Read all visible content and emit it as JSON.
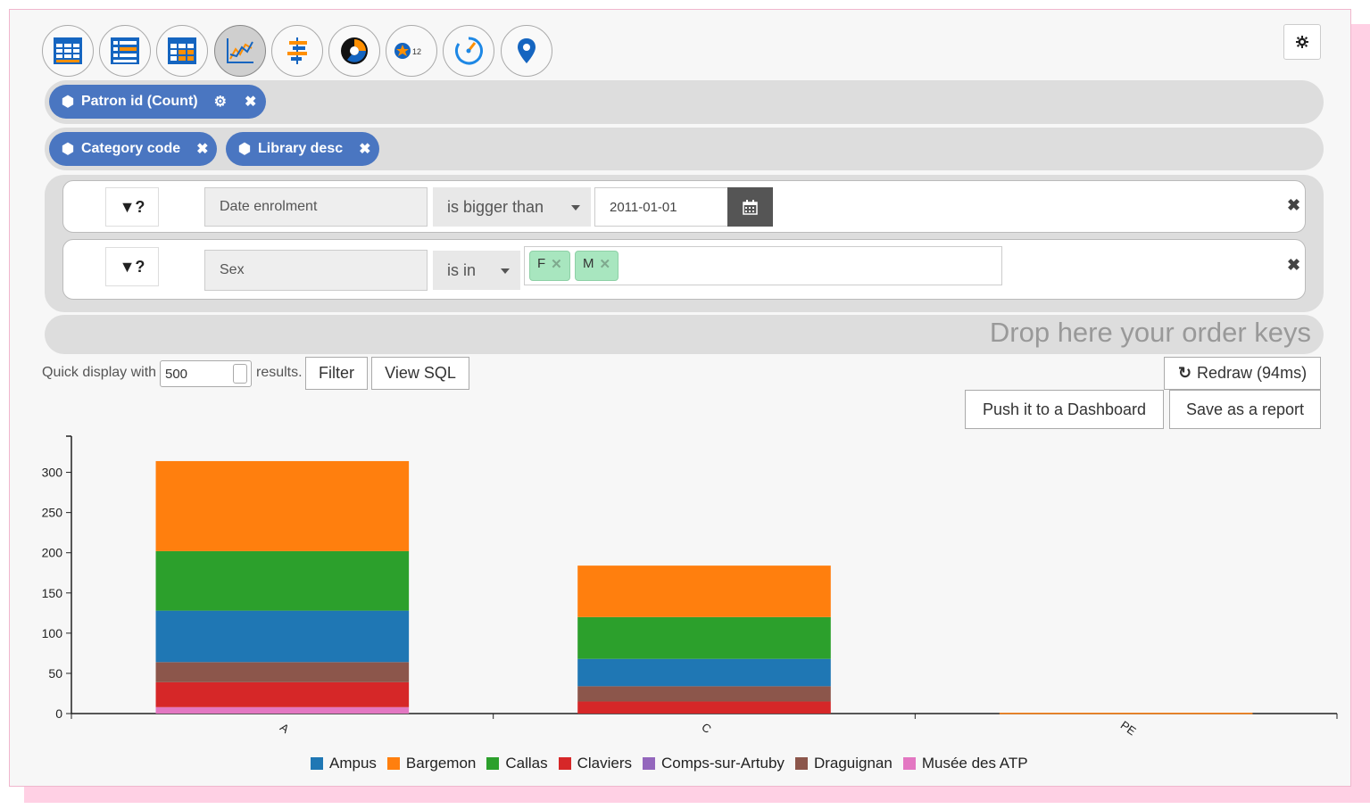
{
  "toolbar": {
    "viz_buttons": [
      {
        "name": "table-view-icon",
        "active": false
      },
      {
        "name": "list-view-icon",
        "active": false
      },
      {
        "name": "pivot-table-icon",
        "active": false
      },
      {
        "name": "line-chart-icon",
        "active": true
      },
      {
        "name": "bar-chart-icon",
        "active": false
      },
      {
        "name": "donut-chart-icon",
        "active": false
      },
      {
        "name": "metric-badge-icon",
        "active": false
      },
      {
        "name": "gauge-icon",
        "active": false
      },
      {
        "name": "map-marker-icon",
        "active": false
      }
    ],
    "badge_number": "12"
  },
  "measures": [
    {
      "label": "Patron id (Count)"
    }
  ],
  "dimensions": [
    {
      "label": "Category code"
    },
    {
      "label": "Library desc"
    }
  ],
  "filters": [
    {
      "funnel_label": "?",
      "field": "Date enrolment",
      "operator": "is bigger than",
      "value": "2011-01-01"
    },
    {
      "funnel_label": "?",
      "field": "Sex",
      "operator": "is in",
      "tags": [
        "F",
        "M"
      ]
    }
  ],
  "order_zone": {
    "placeholder": "Drop here your order keys"
  },
  "controls": {
    "quick_display_label": "Quick display with",
    "limit_value": "500",
    "results_label": "results.",
    "filter_button": "Filter",
    "view_sql_button": "View SQL",
    "redraw_button": "Redraw (94ms)",
    "push_dashboard_button": "Push it to a Dashboard",
    "save_report_button": "Save as a report"
  },
  "colors": {
    "pill": "#4a76c1",
    "tag": "#a8e6bf",
    "Ampus": "#1f77b4",
    "Bargemon": "#ff7f0e",
    "Callas": "#2ca02c",
    "Claviers": "#d62728",
    "Comps-sur-Artuby": "#9467bd",
    "Draguignan": "#8c564b",
    "Musée des ATP": "#e377c2"
  },
  "chart_data": {
    "type": "bar",
    "stacked": true,
    "categories": [
      "A",
      "C",
      "PE"
    ],
    "series": [
      {
        "name": "Musée des ATP",
        "values": [
          8,
          0,
          0
        ]
      },
      {
        "name": "Claviers",
        "values": [
          31,
          15,
          0
        ]
      },
      {
        "name": "Draguignan",
        "values": [
          25,
          19,
          0
        ]
      },
      {
        "name": "Ampus",
        "values": [
          64,
          34,
          0
        ]
      },
      {
        "name": "Callas",
        "values": [
          74,
          52,
          0
        ]
      },
      {
        "name": "Bargemon",
        "values": [
          112,
          64,
          1
        ]
      },
      {
        "name": "Comps-sur-Artuby",
        "values": [
          0,
          0,
          0
        ]
      }
    ],
    "legend_order": [
      "Ampus",
      "Bargemon",
      "Callas",
      "Claviers",
      "Comps-sur-Artuby",
      "Draguignan",
      "Musée des ATP"
    ],
    "ylim": [
      0,
      345
    ],
    "yticks": [
      0,
      50,
      100,
      150,
      200,
      250,
      300
    ],
    "legend_position": "bottom"
  }
}
